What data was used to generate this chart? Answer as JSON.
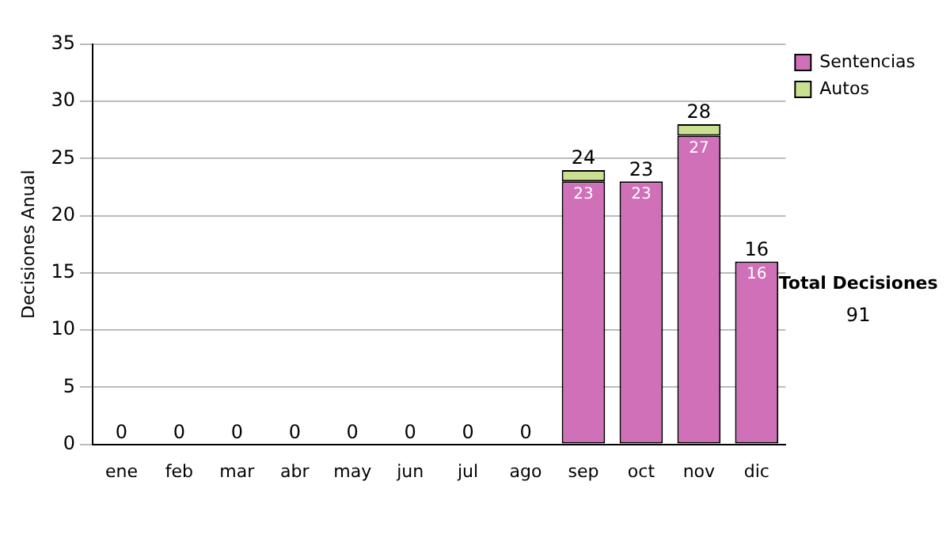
{
  "chart_data": {
    "type": "bar",
    "stacked": true,
    "ylabel": "Decisiones Anual",
    "categories": [
      "ene",
      "feb",
      "mar",
      "abr",
      "may",
      "jun",
      "jul",
      "ago",
      "sep",
      "oct",
      "nov",
      "dic"
    ],
    "series": [
      {
        "name": "Sentencias",
        "color": "#d070b8",
        "values": [
          0,
          0,
          0,
          0,
          0,
          0,
          0,
          0,
          23,
          23,
          27,
          16
        ],
        "value_labels": [
          null,
          null,
          null,
          null,
          null,
          null,
          null,
          null,
          "23",
          "23",
          "27",
          "16"
        ]
      },
      {
        "name": "Autos",
        "color": "#c8e090",
        "values": [
          0,
          0,
          0,
          0,
          0,
          0,
          0,
          0,
          1,
          0,
          1,
          0
        ]
      }
    ],
    "totals": [
      "0",
      "0",
      "0",
      "0",
      "0",
      "0",
      "0",
      "0",
      "24",
      "23",
      "28",
      "16"
    ],
    "ylim": [
      0,
      35
    ],
    "yticks": [
      0,
      5,
      10,
      15,
      20,
      25,
      30,
      35
    ],
    "grid": "y",
    "legend": "right",
    "annotations": [
      "Total Decisiones",
      "91"
    ]
  }
}
